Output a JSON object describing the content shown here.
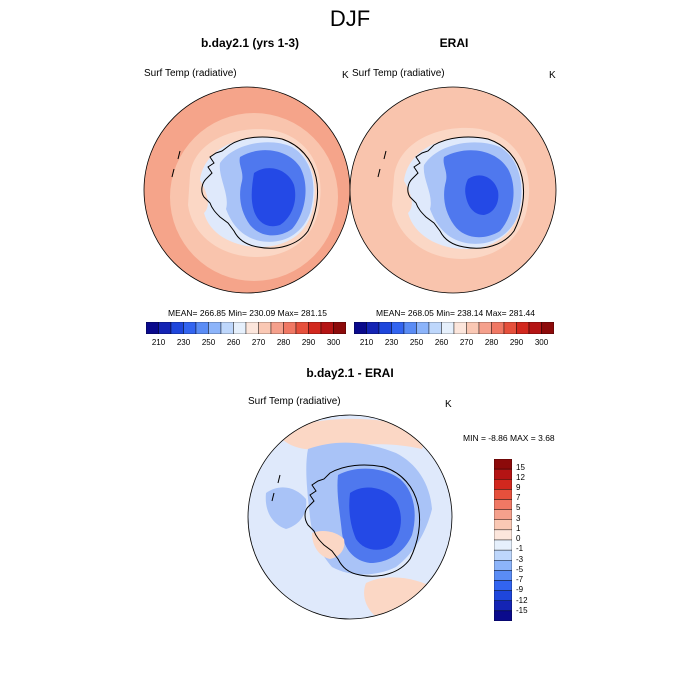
{
  "figure": {
    "title": "DJF"
  },
  "panels": [
    {
      "title": "b.day2.1 (yrs 1-3)",
      "variable": "Surf Temp (radiative)",
      "units": "K",
      "stats": "MEAN= 266.85  Min= 230.09  Max= 281.15"
    },
    {
      "title": "ERAI",
      "variable": "Surf Temp (radiative)",
      "units": "K",
      "stats": "MEAN= 268.05  Min= 238.14  Max= 281.44"
    },
    {
      "title": "b.day2.1 - ERAI",
      "variable": "Surf Temp (radiative)",
      "units": "K",
      "stats": "MIN =  -8.86 MAX =   3.68"
    }
  ],
  "colorbar_abs": {
    "labels": [
      "210",
      "230",
      "250",
      "260",
      "270",
      "280",
      "290",
      "300"
    ],
    "colors": [
      "#0a0a8c",
      "#1424b4",
      "#1e46dc",
      "#3264f0",
      "#5a8cf5",
      "#8cb4fa",
      "#bed7fc",
      "#e6f0fc",
      "#fce6dc",
      "#fac8b4",
      "#f5a08c",
      "#f07864",
      "#e6503c",
      "#d2281e",
      "#b41414",
      "#8c0a0a"
    ]
  },
  "colorbar_diff": {
    "labels": [
      "15",
      "12",
      "9",
      "7",
      "5",
      "3",
      "1",
      "0",
      "-1",
      "-3",
      "-5",
      "-7",
      "-9",
      "-12",
      "-15"
    ],
    "colors": [
      "#8c0a0a",
      "#b41414",
      "#d2281e",
      "#e6503c",
      "#f07864",
      "#f5a08c",
      "#fac8b4",
      "#fce6dc",
      "#e6f0fc",
      "#bed7fc",
      "#8cb4fa",
      "#5a8cf5",
      "#3264f0",
      "#1e46dc",
      "#1424b4",
      "#0a0a8c"
    ]
  },
  "colors": {
    "warm_outer": "#f5a48a",
    "warm_mid": "#f9c4ad",
    "warm_light": "#fbd7c5",
    "cool_light": "#dfe9fb",
    "cool_mid": "#a9c3f7",
    "cool_dark": "#4f78ee",
    "cool_core": "#2449e6",
    "coast": "#000000"
  }
}
